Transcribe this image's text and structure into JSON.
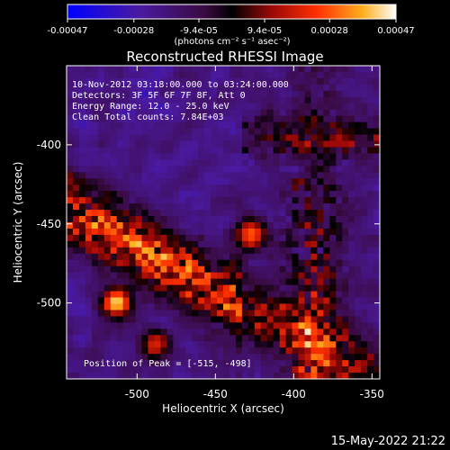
{
  "colorbar": {
    "tick_labels": [
      "-0.00047",
      "-0.00028",
      "-9.4e-05",
      "9.4e-05",
      "0.00028",
      "0.00047"
    ],
    "tick_values": [
      -0.00047,
      -0.00028,
      -9.4e-05,
      9.4e-05,
      0.00028,
      0.00047
    ],
    "range": [
      -0.00047,
      0.00047
    ],
    "unit_label": "(photons cm⁻² s⁻¹ asec⁻²)"
  },
  "annotations": {
    "time_range": "10-Nov-2012 03:18:00.000 to 03:24:00.000",
    "detectors": "Detectors: 3F 5F 6F 7F 8F, Att 0",
    "energy": "Energy Range: 12.0 - 25.0 keV",
    "clean": "Clean     Total counts: 7.84E+03",
    "peak": "Position of Peak = [-515, -498]"
  },
  "footer": {
    "date": "15-May-2022 21:22"
  },
  "chart_data": {
    "type": "heatmap",
    "title": "Reconstructed RHESSI Image",
    "xlabel": "Heliocentric X (arcsec)",
    "ylabel": "Heliocentric Y (arcsec)",
    "xlim": [
      -545,
      -345
    ],
    "ylim": [
      -548,
      -350
    ],
    "x_ticks": [
      -500,
      -450,
      -400,
      -350
    ],
    "x_tick_labels": [
      "-500",
      "-450",
      "-400",
      "-350"
    ],
    "y_ticks": [
      -400,
      -450,
      -500
    ],
    "y_tick_labels": [
      "-400",
      "-450",
      "-500"
    ],
    "colormap": [
      "#0000ff",
      "#3a1a8a",
      "#501a78",
      "#000000",
      "#a01010",
      "#ff3a00",
      "#ffa020",
      "#ffffff"
    ],
    "peak": {
      "x": -515,
      "y": -498
    },
    "bright_sources": [
      {
        "x": -430,
        "y": -455,
        "intensity": 0.9
      },
      {
        "x": -515,
        "y": -498,
        "intensity": 1.0
      },
      {
        "x": -490,
        "y": -525,
        "intensity": 0.75
      }
    ]
  }
}
